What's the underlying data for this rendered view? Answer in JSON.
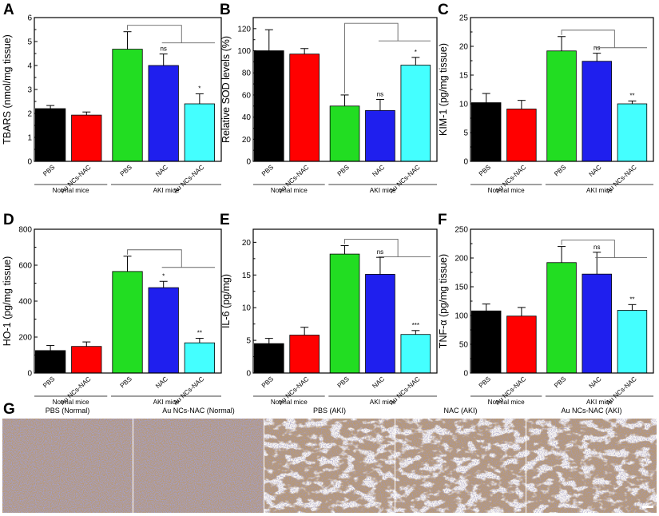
{
  "colors": {
    "bars": [
      "#000000",
      "#ff0000",
      "#22dd22",
      "#1f1fee",
      "#44ffff"
    ],
    "axis": "#000000",
    "bracket": "#666666",
    "micro_tissue": "#b89872",
    "micro_nuclei": "#5f5a96"
  },
  "chart_data": [
    {
      "panel": "A",
      "type": "bar",
      "categories": [
        "PBS",
        "Au NCs-NAC",
        "PBS",
        "NAC",
        "Au NCs-NAC"
      ],
      "groups": [
        {
          "label": "Normal mice",
          "members": [
            0,
            1
          ]
        },
        {
          "label": "AKI mice",
          "members": [
            2,
            3,
            4
          ]
        }
      ],
      "values": [
        2.2,
        1.93,
        4.68,
        4.0,
        2.4
      ],
      "errors": [
        0.13,
        0.13,
        0.73,
        0.48,
        0.42
      ],
      "significance": [
        "",
        "",
        "",
        "ns",
        "*"
      ],
      "ylabel": "TBARS (nmol/mg tissue)",
      "ylim": [
        0,
        6
      ],
      "yticks": [
        0,
        1,
        2,
        3,
        4,
        5,
        6
      ],
      "ytick_labels": [
        "0",
        "1",
        "2",
        "3",
        "4",
        "5",
        "6"
      ]
    },
    {
      "panel": "B",
      "type": "bar",
      "categories": [
        "PBS",
        "Au NCs-NAC",
        "PBS",
        "NAC",
        "Au NCs-NAC"
      ],
      "groups": [
        {
          "label": "Normal mice",
          "members": [
            0,
            1
          ]
        },
        {
          "label": "AKI mice",
          "members": [
            2,
            3,
            4
          ]
        }
      ],
      "values": [
        100,
        97,
        50,
        46,
        87
      ],
      "errors": [
        19,
        5,
        10,
        10,
        7
      ],
      "significance": [
        "",
        "",
        "",
        "ns",
        "*"
      ],
      "ylabel": "Relative SOD levels (%)",
      "ylim": [
        0,
        130
      ],
      "yticks": [
        0,
        20,
        40,
        60,
        80,
        100,
        120
      ],
      "ytick_labels": [
        "0",
        "20",
        "40",
        "60",
        "80",
        "100",
        "120"
      ]
    },
    {
      "panel": "C",
      "type": "bar",
      "categories": [
        "PBS",
        "Au NCs-NAC",
        "PBS",
        "NAC",
        "Au NCs-NAC"
      ],
      "groups": [
        {
          "label": "Normal mice",
          "members": [
            0,
            1
          ]
        },
        {
          "label": "AKI mice",
          "members": [
            2,
            3,
            4
          ]
        }
      ],
      "values": [
        10.2,
        9.1,
        19.2,
        17.4,
        10.0
      ],
      "errors": [
        1.6,
        1.5,
        2.5,
        1.4,
        0.5
      ],
      "significance": [
        "",
        "",
        "",
        "ns",
        "**"
      ],
      "ylabel": "KIM-1 (pg/mg tissue)",
      "ylim": [
        0,
        25
      ],
      "yticks": [
        0,
        5,
        10,
        15,
        20,
        25
      ],
      "ytick_labels": [
        "0",
        "5",
        "10",
        "15",
        "20",
        "25"
      ]
    },
    {
      "panel": "D",
      "type": "bar",
      "categories": [
        "PBS",
        "Au NCs-NAC",
        "PBS",
        "NAC",
        "Au NCs-NAC"
      ],
      "groups": [
        {
          "label": "Normal mice",
          "members": [
            0,
            1
          ]
        },
        {
          "label": "AKI mice",
          "members": [
            2,
            3,
            4
          ]
        }
      ],
      "values": [
        125,
        148,
        565,
        475,
        168
      ],
      "errors": [
        28,
        25,
        85,
        35,
        25
      ],
      "significance": [
        "",
        "",
        "",
        "*",
        "**"
      ],
      "ylabel": "HO-1 (pg/mg tissue)",
      "ylim": [
        0,
        800
      ],
      "yticks": [
        0,
        200,
        400,
        600,
        800
      ],
      "ytick_labels": [
        "0",
        "200",
        "400",
        "600",
        "800"
      ]
    },
    {
      "panel": "E",
      "type": "bar",
      "categories": [
        "PBS",
        "Au NCs-NAC",
        "PBS",
        "NAC",
        "Au NCs-NAC"
      ],
      "groups": [
        {
          "label": "Normal mice",
          "members": [
            0,
            1
          ]
        },
        {
          "label": "AKI mice",
          "members": [
            2,
            3,
            4
          ]
        }
      ],
      "values": [
        4.5,
        5.8,
        18.2,
        15.1,
        5.9
      ],
      "errors": [
        0.8,
        1.2,
        1.3,
        2.6,
        0.6
      ],
      "significance": [
        "",
        "",
        "",
        "ns",
        "***"
      ],
      "ylabel": "IL-6 (pg/mg)",
      "ylim": [
        0,
        22
      ],
      "yticks": [
        0,
        5,
        10,
        15,
        20
      ],
      "ytick_labels": [
        "0",
        "5",
        "10",
        "15",
        "20"
      ]
    },
    {
      "panel": "F",
      "type": "bar",
      "categories": [
        "PBS",
        "Au NCs-NAC",
        "PBS",
        "NAC",
        "Au NCs-NAC"
      ],
      "groups": [
        {
          "label": "Normal mice",
          "members": [
            0,
            1
          ]
        },
        {
          "label": "AKI mice",
          "members": [
            2,
            3,
            4
          ]
        }
      ],
      "values": [
        108,
        99,
        192,
        172,
        109
      ],
      "errors": [
        12,
        15,
        28,
        38,
        10
      ],
      "significance": [
        "",
        "",
        "",
        "ns",
        "**"
      ],
      "ylabel": "TNF-α (pg/mg tissue)",
      "ylim": [
        0,
        250
      ],
      "yticks": [
        0,
        50,
        100,
        150,
        200,
        250
      ],
      "ytick_labels": [
        "0",
        "50",
        "100",
        "150",
        "200",
        "250"
      ]
    }
  ],
  "micrographs": {
    "panel": "G",
    "titles": [
      "PBS (Normal)",
      "Au NCs-NAC (Normal)",
      "PBS (AKI)",
      "NAC (AKI)",
      "Au NCs-NAC (AKI)"
    ]
  }
}
